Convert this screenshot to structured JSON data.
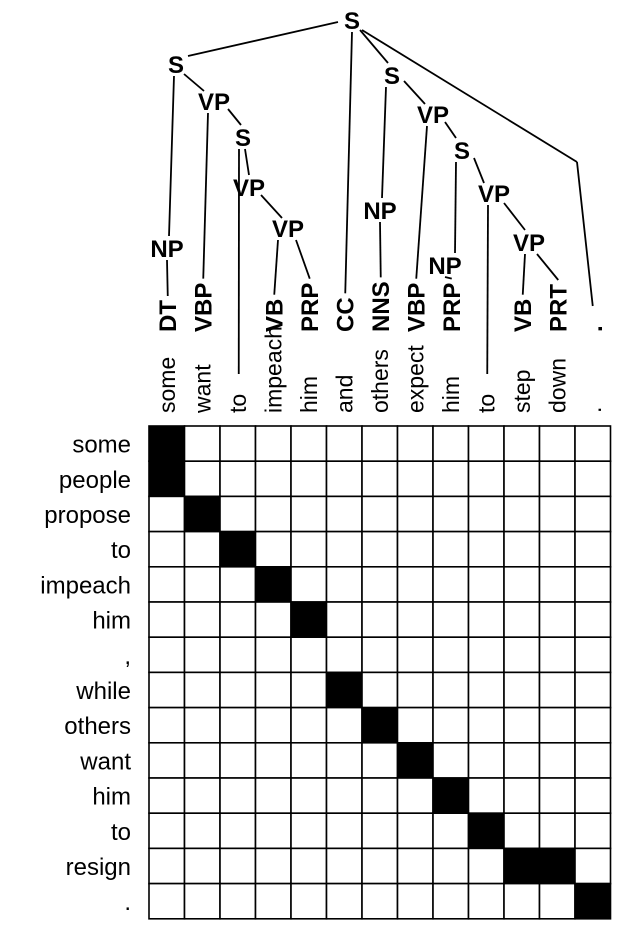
{
  "tree": {
    "leaves": [
      {
        "word": "some",
        "tag": "DT"
      },
      {
        "word": "want",
        "tag": "VBP"
      },
      {
        "word": "to",
        "tag": ""
      },
      {
        "word": "impeach",
        "tag": "VB"
      },
      {
        "word": "him",
        "tag": "PRP"
      },
      {
        "word": "and",
        "tag": "CC"
      },
      {
        "word": "others",
        "tag": "NNS"
      },
      {
        "word": "expect",
        "tag": "VBP"
      },
      {
        "word": "him",
        "tag": "PRP"
      },
      {
        "word": "to",
        "tag": ""
      },
      {
        "word": "step",
        "tag": "VB"
      },
      {
        "word": "down",
        "tag": "PRT"
      },
      {
        "word": ".",
        "tag": "."
      }
    ],
    "nodes": [
      {
        "id": "n0",
        "label": "S"
      },
      {
        "id": "n1",
        "label": "S"
      },
      {
        "id": "n2",
        "label": "NP"
      },
      {
        "id": "n3",
        "label": "VP"
      },
      {
        "id": "n4",
        "label": "S"
      },
      {
        "id": "n5",
        "label": "VP"
      },
      {
        "id": "n6",
        "label": "VP"
      },
      {
        "id": "n7",
        "label": "S"
      },
      {
        "id": "n8",
        "label": "NP"
      },
      {
        "id": "n9",
        "label": "VP"
      },
      {
        "id": "n10",
        "label": "S"
      },
      {
        "id": "n11",
        "label": "NP"
      },
      {
        "id": "n12",
        "label": "VP"
      },
      {
        "id": "n13",
        "label": "VP"
      }
    ]
  },
  "source_words": [
    "some",
    "people",
    "propose",
    "to",
    "impeach",
    "him",
    ",",
    "while",
    "others",
    "want",
    "him",
    "to",
    "resign",
    "."
  ],
  "alignment_matrix": {
    "rows": 14,
    "cols": 13,
    "filled": [
      [
        0,
        0
      ],
      [
        1,
        0
      ],
      [
        2,
        1
      ],
      [
        3,
        2
      ],
      [
        4,
        3
      ],
      [
        5,
        4
      ],
      [
        7,
        5
      ],
      [
        8,
        6
      ],
      [
        9,
        7
      ],
      [
        10,
        8
      ],
      [
        11,
        9
      ],
      [
        12,
        10
      ],
      [
        12,
        11
      ],
      [
        13,
        12
      ]
    ]
  }
}
